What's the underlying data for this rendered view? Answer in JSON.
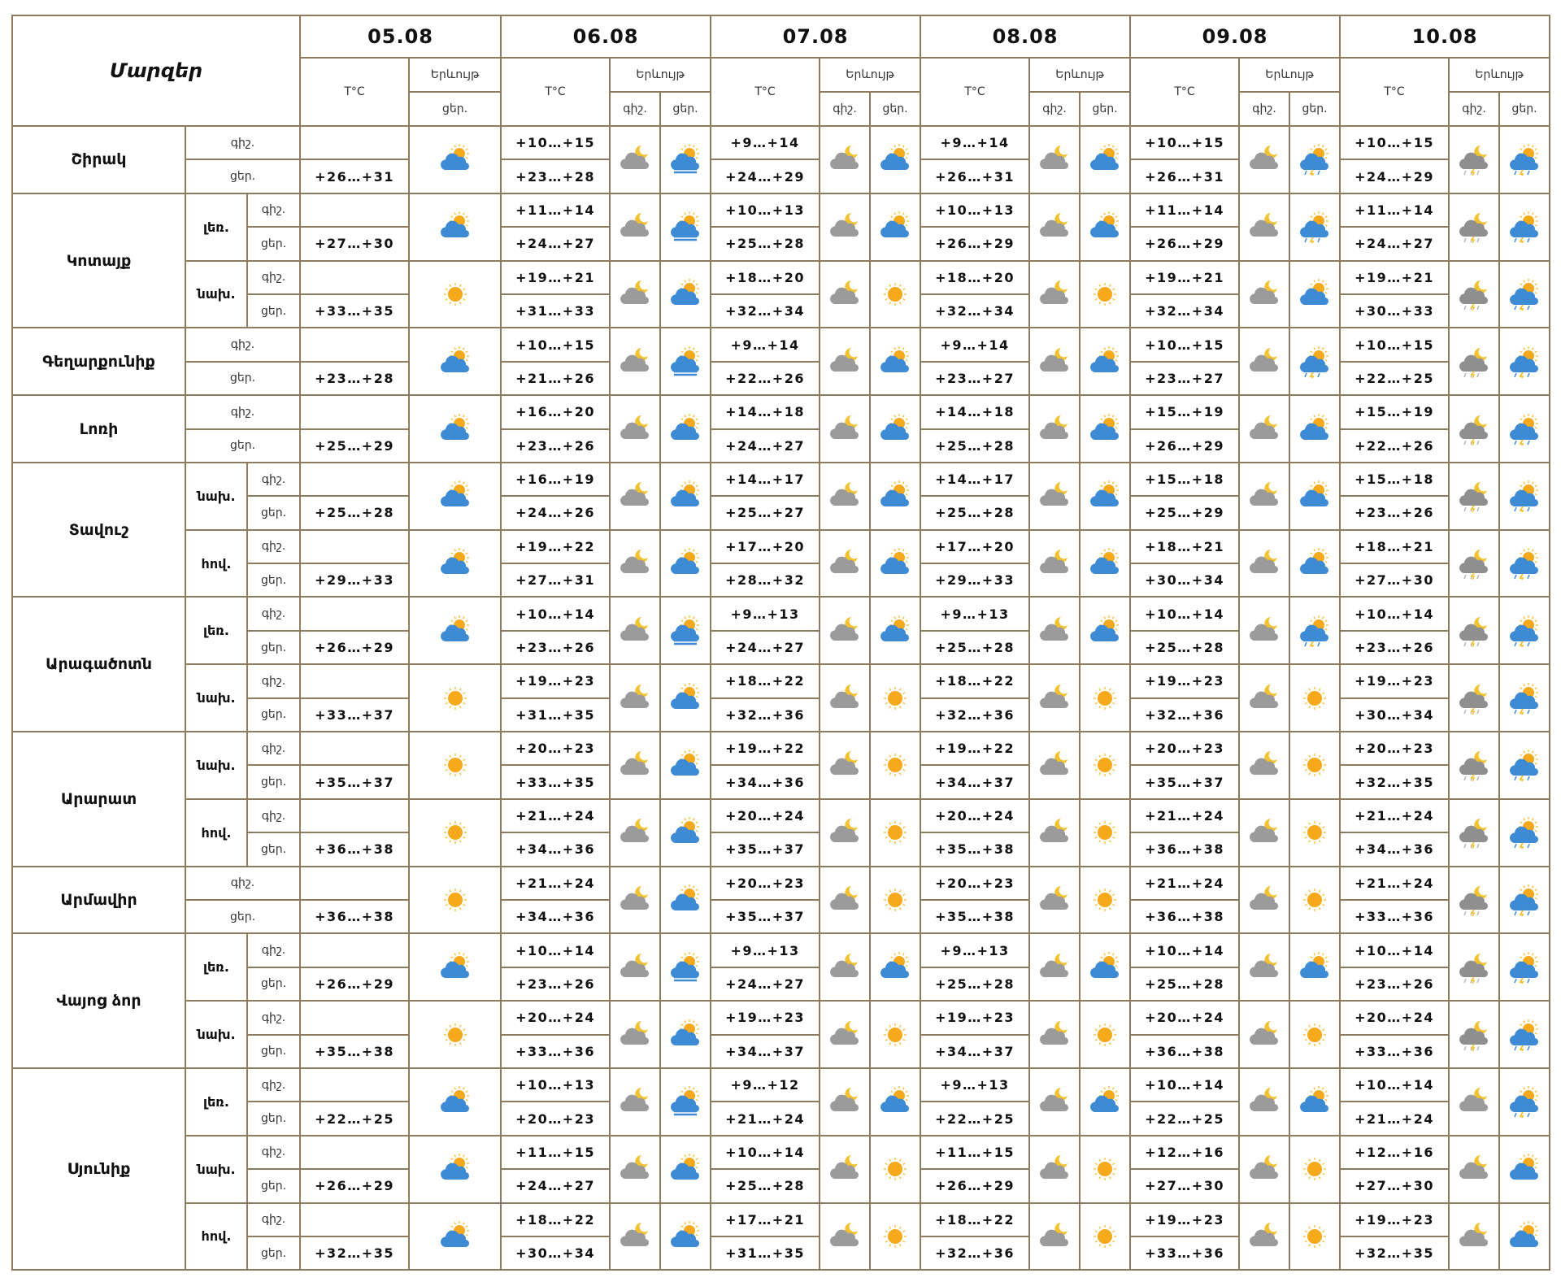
{
  "header": {
    "title": "Մարզեր",
    "dates": [
      "05.08",
      "06.08",
      "07.08",
      "08.08",
      "09.08",
      "10.08"
    ],
    "temp": "T°C",
    "phenomenon": "Երևույթ",
    "night": "գիշ.",
    "day": "ցեր."
  },
  "regions": [
    {
      "name": "Շիրակ",
      "zones": [
        {
          "temps": [
            [
              "+26…+31"
            ],
            [
              "+10…+15",
              "+23…+28"
            ],
            [
              "+9…+14",
              "+24…+29"
            ],
            [
              "+9…+14",
              "+26…+31"
            ],
            [
              "+10…+15",
              "+26…+31"
            ],
            [
              "+10…+15",
              "+24…+29"
            ]
          ]
        }
      ]
    },
    {
      "name": "Կոտայք",
      "zones": [
        {
          "name": "լեռ.",
          "temps": [
            [
              "+27…+30"
            ],
            [
              "+11…+14",
              "+24…+27"
            ],
            [
              "+10…+13",
              "+25…+28"
            ],
            [
              "+10…+13",
              "+26…+29"
            ],
            [
              "+11…+14",
              "+26…+29"
            ],
            [
              "+11…+14",
              "+24…+27"
            ]
          ]
        },
        {
          "name": "նախ.",
          "temps": [
            [
              "+33…+35"
            ],
            [
              "+19…+21",
              "+31…+33"
            ],
            [
              "+18…+20",
              "+32…+34"
            ],
            [
              "+18…+20",
              "+32…+34"
            ],
            [
              "+19…+21",
              "+32…+34"
            ],
            [
              "+19…+21",
              "+30…+33"
            ]
          ]
        }
      ]
    },
    {
      "name": "Գեղարքունիք",
      "zones": [
        {
          "temps": [
            [
              "+23…+28"
            ],
            [
              "+10…+15",
              "+21…+26"
            ],
            [
              "+9…+14",
              "+22…+26"
            ],
            [
              "+9…+14",
              "+23…+27"
            ],
            [
              "+10…+15",
              "+23…+27"
            ],
            [
              "+10…+15",
              "+22…+25"
            ]
          ]
        }
      ]
    },
    {
      "name": "Լոռի",
      "zones": [
        {
          "temps": [
            [
              "+25…+29"
            ],
            [
              "+16…+20",
              "+23…+26"
            ],
            [
              "+14…+18",
              "+24…+27"
            ],
            [
              "+14…+18",
              "+25…+28"
            ],
            [
              "+15…+19",
              "+26…+29"
            ],
            [
              "+15…+19",
              "+22…+26"
            ]
          ]
        }
      ]
    },
    {
      "name": "Տավուշ",
      "zones": [
        {
          "name": "նախ.",
          "temps": [
            [
              "+25…+28"
            ],
            [
              "+16…+19",
              "+24…+26"
            ],
            [
              "+14…+17",
              "+25…+27"
            ],
            [
              "+14…+17",
              "+25…+28"
            ],
            [
              "+15…+18",
              "+25…+29"
            ],
            [
              "+15…+18",
              "+23…+26"
            ]
          ]
        },
        {
          "name": "հով.",
          "temps": [
            [
              "+29…+33"
            ],
            [
              "+19…+22",
              "+27…+31"
            ],
            [
              "+17…+20",
              "+28…+32"
            ],
            [
              "+17…+20",
              "+29…+33"
            ],
            [
              "+18…+21",
              "+30…+34"
            ],
            [
              "+18…+21",
              "+27…+30"
            ]
          ]
        }
      ]
    },
    {
      "name": "Արագածոտն",
      "zones": [
        {
          "name": "լեռ.",
          "temps": [
            [
              "+26…+29"
            ],
            [
              "+10…+14",
              "+23…+26"
            ],
            [
              "+9…+13",
              "+24…+27"
            ],
            [
              "+9…+13",
              "+25…+28"
            ],
            [
              "+10…+14",
              "+25…+28"
            ],
            [
              "+10…+14",
              "+23…+26"
            ]
          ]
        },
        {
          "name": "նախ.",
          "temps": [
            [
              "+33…+37"
            ],
            [
              "+19…+23",
              "+31…+35"
            ],
            [
              "+18…+22",
              "+32…+36"
            ],
            [
              "+18…+22",
              "+32…+36"
            ],
            [
              "+19…+23",
              "+32…+36"
            ],
            [
              "+19…+23",
              "+30…+34"
            ]
          ]
        }
      ]
    },
    {
      "name": "Արարատ",
      "zones": [
        {
          "name": "նախ.",
          "temps": [
            [
              "+35…+37"
            ],
            [
              "+20…+23",
              "+33…+35"
            ],
            [
              "+19…+22",
              "+34…+36"
            ],
            [
              "+19…+22",
              "+34…+37"
            ],
            [
              "+20…+23",
              "+35…+37"
            ],
            [
              "+20…+23",
              "+32…+35"
            ]
          ]
        },
        {
          "name": "հով.",
          "temps": [
            [
              "+36…+38"
            ],
            [
              "+21…+24",
              "+34…+36"
            ],
            [
              "+20…+24",
              "+35…+37"
            ],
            [
              "+20…+24",
              "+35…+38"
            ],
            [
              "+21…+24",
              "+36…+38"
            ],
            [
              "+21…+24",
              "+34…+36"
            ]
          ]
        }
      ]
    },
    {
      "name": "Արմավիր",
      "zones": [
        {
          "temps": [
            [
              "+36…+38"
            ],
            [
              "+21…+24",
              "+34…+36"
            ],
            [
              "+20…+23",
              "+35…+37"
            ],
            [
              "+20…+23",
              "+35…+38"
            ],
            [
              "+21…+24",
              "+36…+38"
            ],
            [
              "+21…+24",
              "+33…+36"
            ]
          ]
        }
      ]
    },
    {
      "name": "Վայոց ձոր",
      "zones": [
        {
          "name": "լեռ.",
          "temps": [
            [
              "+26…+29"
            ],
            [
              "+10…+14",
              "+23…+26"
            ],
            [
              "+9…+13",
              "+24…+27"
            ],
            [
              "+9…+13",
              "+25…+28"
            ],
            [
              "+10…+14",
              "+25…+28"
            ],
            [
              "+10…+14",
              "+23…+26"
            ]
          ]
        },
        {
          "name": "նախ.",
          "temps": [
            [
              "+35…+38"
            ],
            [
              "+20…+24",
              "+33…+36"
            ],
            [
              "+19…+23",
              "+34…+37"
            ],
            [
              "+19…+23",
              "+34…+37"
            ],
            [
              "+20…+24",
              "+36…+38"
            ],
            [
              "+20…+24",
              "+33…+36"
            ]
          ]
        }
      ]
    },
    {
      "name": "Սյունիք",
      "zones": [
        {
          "name": "լեռ.",
          "temps": [
            [
              "+22…+25"
            ],
            [
              "+10…+13",
              "+20…+23"
            ],
            [
              "+9…+12",
              "+21…+24"
            ],
            [
              "+9…+13",
              "+22…+25"
            ],
            [
              "+10…+14",
              "+22…+25"
            ],
            [
              "+10…+14",
              "+21…+24"
            ]
          ]
        },
        {
          "name": "նախ.",
          "temps": [
            [
              "+26…+29"
            ],
            [
              "+11…+15",
              "+24…+27"
            ],
            [
              "+10…+14",
              "+25…+28"
            ],
            [
              "+11…+15",
              "+26…+29"
            ],
            [
              "+12…+16",
              "+27…+30"
            ],
            [
              "+12…+16",
              "+27…+30"
            ]
          ]
        },
        {
          "name": "հով.",
          "temps": [
            [
              "+32…+35"
            ],
            [
              "+18…+22",
              "+30…+34"
            ],
            [
              "+17…+21",
              "+31…+35"
            ],
            [
              "+18…+22",
              "+32…+36"
            ],
            [
              "+19…+23",
              "+33…+36"
            ],
            [
              "+19…+23",
              "+32…+35"
            ]
          ]
        }
      ]
    }
  ]
}
